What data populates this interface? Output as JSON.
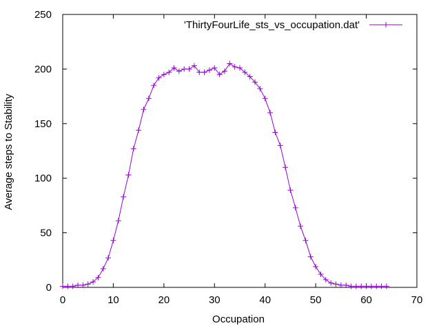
{
  "chart_data": {
    "type": "line",
    "title": "",
    "xlabel": "Occupation",
    "ylabel": "Average steps to Stability",
    "xlim": [
      0,
      70
    ],
    "ylim": [
      0,
      250
    ],
    "xticks": [
      0,
      10,
      20,
      30,
      40,
      50,
      60,
      70
    ],
    "yticks": [
      0,
      50,
      100,
      150,
      200,
      250
    ],
    "grid": false,
    "legend_position": "top-right",
    "series": [
      {
        "name": "'ThirtyFourLife_sts_vs_occupation.dat'",
        "color": "#9400d3",
        "marker": "plus",
        "x": [
          0,
          1,
          2,
          3,
          4,
          5,
          6,
          7,
          8,
          9,
          10,
          11,
          12,
          13,
          14,
          15,
          16,
          17,
          18,
          19,
          20,
          21,
          22,
          23,
          24,
          25,
          26,
          27,
          28,
          29,
          30,
          31,
          32,
          33,
          34,
          35,
          36,
          37,
          38,
          39,
          40,
          41,
          42,
          43,
          44,
          45,
          46,
          47,
          48,
          49,
          50,
          51,
          52,
          53,
          54,
          55,
          56,
          57,
          58,
          59,
          60,
          61,
          62,
          63,
          64
        ],
        "values": [
          1,
          1,
          1,
          2,
          2,
          3,
          5,
          9,
          17,
          27,
          43,
          61,
          83,
          103,
          127,
          144,
          163,
          173,
          185,
          192,
          195,
          197,
          201,
          198,
          200,
          200,
          203,
          197,
          197,
          199,
          201,
          195,
          198,
          205,
          202,
          201,
          197,
          193,
          188,
          182,
          173,
          160,
          142,
          130,
          110,
          89,
          73,
          56,
          43,
          28,
          19,
          12,
          7,
          4,
          3,
          2,
          2,
          1,
          1,
          1,
          1,
          1,
          1,
          1,
          1
        ]
      }
    ]
  }
}
